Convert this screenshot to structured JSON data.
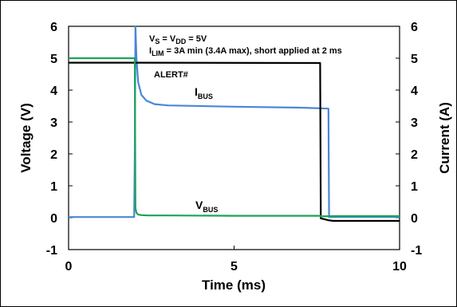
{
  "chart_data": {
    "type": "line",
    "title": "",
    "xlabel": "Time (ms)",
    "ylabel_left": "Voltage (V)",
    "ylabel_right": "Current (A)",
    "xlim": [
      0,
      10
    ],
    "ylim_left": [
      -1,
      6
    ],
    "ylim_right": [
      -1,
      6
    ],
    "x_ticks": [
      "0",
      "5",
      "10"
    ],
    "y_ticks_left": [
      "-1",
      "0",
      "1",
      "2",
      "3",
      "4",
      "5",
      "6"
    ],
    "y_ticks_right": [
      "-1",
      "0",
      "1",
      "2",
      "3",
      "4",
      "5",
      "6"
    ],
    "grid": false,
    "annotations": {
      "line1": {
        "v": "V",
        "s": "S",
        "eq1": " = V",
        "dd": "DD",
        "eq2": " = 5V"
      },
      "line2": {
        "i": "I",
        "lim": "LIM",
        "rest": " = 3A min (3.4A max), short applied at 2 ms"
      }
    },
    "series": [
      {
        "name": "ALERT#",
        "label_text": "ALERT#",
        "axis": "left",
        "color": "#000000",
        "x": [
          0,
          2.0,
          2.02,
          7.6,
          7.62,
          7.85,
          8.0,
          10
        ],
        "y": [
          4.86,
          4.86,
          4.86,
          4.85,
          -0.02,
          -0.08,
          -0.1,
          -0.1
        ]
      },
      {
        "name": "IBUS",
        "label_main": "I",
        "label_sub": "BUS",
        "axis": "right",
        "color": "#4a86d6",
        "x": [
          0,
          1.98,
          2.0,
          2.02,
          2.05,
          2.1,
          2.2,
          2.35,
          2.6,
          3.0,
          5.0,
          7.0,
          7.85,
          7.87,
          10
        ],
        "y": [
          0.02,
          0.02,
          2.0,
          6.0,
          5.0,
          4.25,
          3.85,
          3.67,
          3.56,
          3.52,
          3.48,
          3.45,
          3.42,
          0.02,
          0.02
        ]
      },
      {
        "name": "VBUS",
        "label_main": "V",
        "label_sub": "BUS",
        "axis": "left",
        "color": "#1aa35a",
        "x": [
          0,
          2.0,
          2.02,
          2.05,
          2.1,
          2.2,
          2.4,
          3.0,
          5.0,
          7.6,
          7.62,
          8.0,
          10
        ],
        "y": [
          5.0,
          5.0,
          0.3,
          0.15,
          0.1,
          0.08,
          0.07,
          0.07,
          0.06,
          0.06,
          0.04,
          0.05,
          0.05
        ]
      }
    ]
  }
}
